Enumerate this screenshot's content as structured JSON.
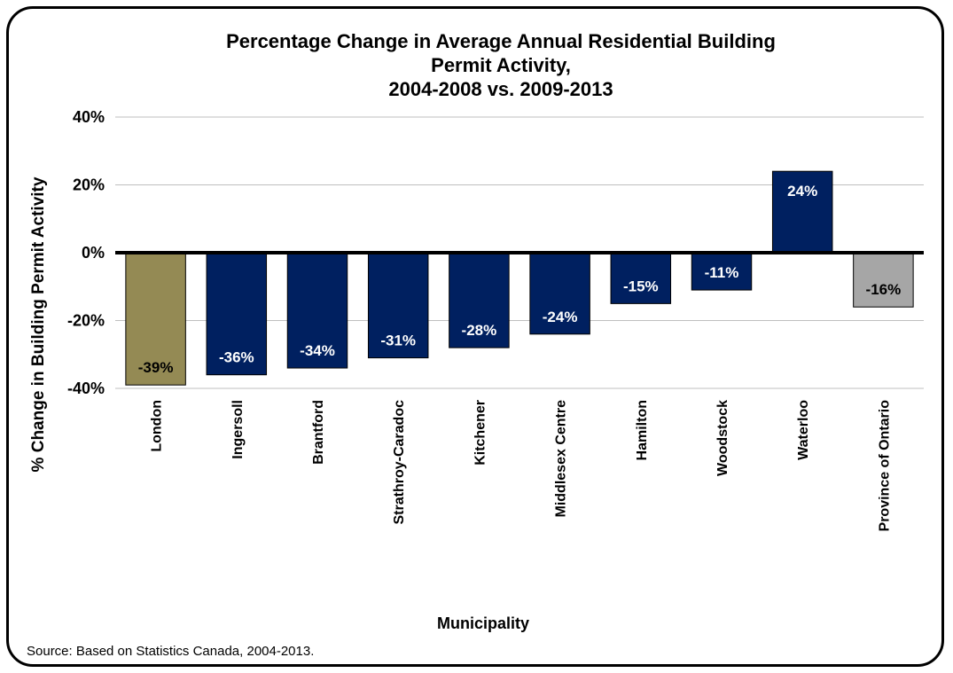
{
  "chart_data": {
    "type": "bar",
    "title": [
      "Percentage Change in Average Annual Residential Building",
      "Permit Activity,",
      "2004-2008 vs. 2009-2013"
    ],
    "xlabel": "Municipality",
    "ylabel": "% Change in Building Permit Activity",
    "ylim": [
      -40,
      40
    ],
    "yticks": [
      {
        "value": 40,
        "label": "40%"
      },
      {
        "value": 20,
        "label": "20%"
      },
      {
        "value": 0,
        "label": "0%"
      },
      {
        "value": -20,
        "label": "-20%"
      },
      {
        "value": -40,
        "label": "-40%"
      }
    ],
    "grid": true,
    "categories": [
      "London",
      "Ingersoll",
      "Brantford",
      "Strathroy-Caradoc",
      "Kitchener",
      "Middlesex Centre",
      "Hamilton",
      "Woodstock",
      "Waterloo",
      "Province of Ontario"
    ],
    "values": [
      -39,
      -36,
      -34,
      -31,
      -28,
      -24,
      -15,
      -11,
      24,
      -16
    ],
    "data_labels": [
      "-39%",
      "-36%",
      "-34%",
      "-31%",
      "-28%",
      "-24%",
      "-15%",
      "-11%",
      "24%",
      "-16%"
    ],
    "colors": {
      "default_bar": "#002060",
      "highlight_bar": "#948a54",
      "reference_bar": "#a6a6a6",
      "gridline": "#bfbfbf",
      "axis": "#000000"
    },
    "bar_color_keys": [
      "highlight_bar",
      "default_bar",
      "default_bar",
      "default_bar",
      "default_bar",
      "default_bar",
      "default_bar",
      "default_bar",
      "default_bar",
      "reference_bar"
    ],
    "label_color_keys": [
      "dark",
      "light",
      "light",
      "light",
      "light",
      "light",
      "light",
      "light",
      "light",
      "dark"
    ]
  },
  "source": "Source: Based on Statistics Canada, 2004-2013."
}
